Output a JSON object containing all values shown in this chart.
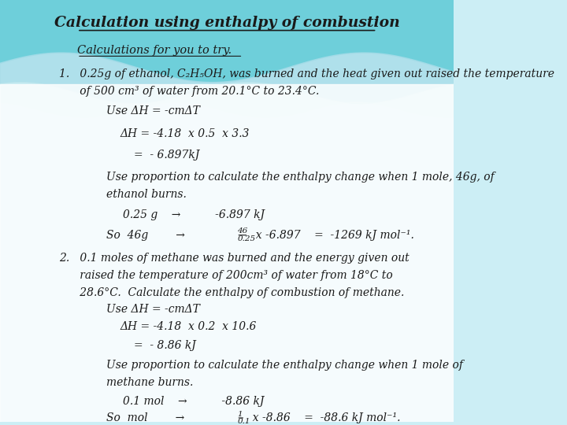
{
  "title": "Calculation using enthalpy of combustion",
  "bg_top_color": "#6ecfda",
  "bg_wave1_color": "#a8dde9",
  "bg_wave2_color": "#c5eaf0",
  "bg_main_color": "#ffffff",
  "text_color": "#1a1a1a",
  "subtitle": "Calculations for you to try.",
  "q1_line1": "1.   0.25g of ethanol, C₂H₅OH, was burned and the heat given out raised the temperature",
  "q1_line2": "      of 500 cm³ of water from 20.1°C to 23.4°C.",
  "q1_use": "Use ΔH = -cmΔT",
  "q1_dh": "ΔH = -4.18  x 0.5  x 3.3",
  "q1_eq": "=  - 6.897kJ",
  "q1_prop1": "Use proportion to calculate the enthalpy change when 1 mole, 46g, of",
  "q1_prop2": "ethanol burns.",
  "q1_arrow": "0.25 g    →          -6.897 kJ",
  "q1_so_pre": "So  46g        →       ",
  "q1_so_num": "46",
  "q1_so_den": "0.25",
  "q1_so_post": "  x -6.897    =  -1269 kJ mol⁻¹.",
  "q2_line1": "2.   0.1 moles of methane was burned and the energy given out",
  "q2_line2": "      raised the temperature of 200cm³ of water from 18°C to",
  "q2_line3": "      28.6°C.  Calculate the enthalpy of combustion of methane.",
  "q2_use": "Use ΔH = -cmΔT",
  "q2_dh": "ΔH = -4.18  x 0.2  x 10.6",
  "q2_eq": "=  - 8.86 kJ",
  "q2_prop1": "Use proportion to calculate the enthalpy change when 1 mole of",
  "q2_prop2": "methane burns.",
  "q2_arrow": "0.1 mol    →          -8.86 kJ",
  "q2_so_pre": "So  mol        →       ",
  "q2_so_num": "1",
  "q2_so_den": "0.1",
  "q2_so_post": "  x -8.86    =  -88.6 kJ mol⁻¹."
}
